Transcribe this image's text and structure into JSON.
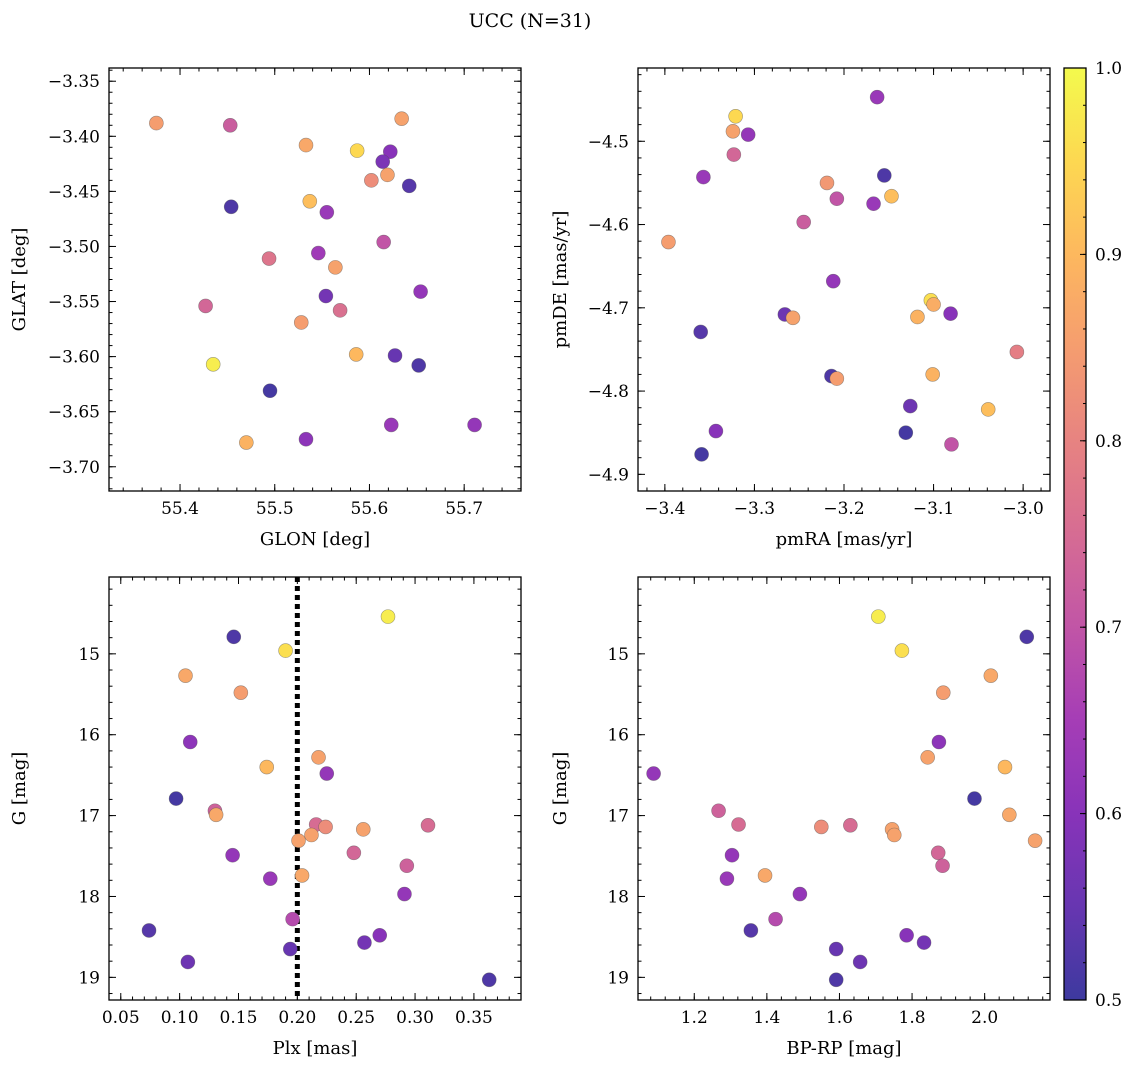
{
  "figure": {
    "title": "UCC (N=31)"
  },
  "colorbar": {
    "min": 0.5,
    "max": 1.0,
    "ticks": [
      0.5,
      0.6,
      0.7,
      0.8,
      0.9,
      1.0
    ],
    "tick_labels": [
      "0.5",
      "0.6",
      "0.7",
      "0.8",
      "0.9",
      "1.0"
    ],
    "colormap": "plasma"
  },
  "chart_data": [
    {
      "type": "scatter",
      "xlabel": "GLON [deg]",
      "ylabel": "GLAT [deg]",
      "xlim": [
        55.325,
        55.76
      ],
      "ylim": [
        -3.722,
        -3.338
      ],
      "xticks": [
        55.4,
        55.5,
        55.6,
        55.7
      ],
      "xtick_labels": [
        "55.4",
        "55.5",
        "55.6",
        "55.7"
      ],
      "yticks": [
        -3.35,
        -3.4,
        -3.45,
        -3.5,
        -3.55,
        -3.6,
        -3.65,
        -3.7
      ],
      "ytick_labels": [
        "−3.35",
        "−3.40",
        "−3.45",
        "−3.50",
        "−3.55",
        "−3.60",
        "−3.65",
        "−3.70"
      ],
      "points": [
        {
          "x": 55.375,
          "y": -3.388,
          "c": 0.85
        },
        {
          "x": 55.453,
          "y": -3.39,
          "c": 0.72
        },
        {
          "x": 55.533,
          "y": -3.408,
          "c": 0.87
        },
        {
          "x": 55.587,
          "y": -3.413,
          "c": 0.95
        },
        {
          "x": 55.622,
          "y": -3.414,
          "c": 0.6
        },
        {
          "x": 55.634,
          "y": -3.384,
          "c": 0.86
        },
        {
          "x": 55.614,
          "y": -3.423,
          "c": 0.58
        },
        {
          "x": 55.602,
          "y": -3.44,
          "c": 0.82
        },
        {
          "x": 55.619,
          "y": -3.435,
          "c": 0.86
        },
        {
          "x": 55.642,
          "y": -3.445,
          "c": 0.53
        },
        {
          "x": 55.454,
          "y": -3.464,
          "c": 0.52
        },
        {
          "x": 55.537,
          "y": -3.459,
          "c": 0.91
        },
        {
          "x": 55.555,
          "y": -3.469,
          "c": 0.63
        },
        {
          "x": 55.615,
          "y": -3.496,
          "c": 0.7
        },
        {
          "x": 55.546,
          "y": -3.506,
          "c": 0.64
        },
        {
          "x": 55.494,
          "y": -3.511,
          "c": 0.77
        },
        {
          "x": 55.564,
          "y": -3.519,
          "c": 0.86
        },
        {
          "x": 55.654,
          "y": -3.541,
          "c": 0.62
        },
        {
          "x": 55.554,
          "y": -3.545,
          "c": 0.57
        },
        {
          "x": 55.427,
          "y": -3.554,
          "c": 0.74
        },
        {
          "x": 55.569,
          "y": -3.558,
          "c": 0.76
        },
        {
          "x": 55.528,
          "y": -3.569,
          "c": 0.85
        },
        {
          "x": 55.586,
          "y": -3.598,
          "c": 0.9
        },
        {
          "x": 55.627,
          "y": -3.599,
          "c": 0.55
        },
        {
          "x": 55.435,
          "y": -3.607,
          "c": 0.98
        },
        {
          "x": 55.652,
          "y": -3.608,
          "c": 0.52
        },
        {
          "x": 55.495,
          "y": -3.631,
          "c": 0.51
        },
        {
          "x": 55.47,
          "y": -3.678,
          "c": 0.89
        },
        {
          "x": 55.533,
          "y": -3.675,
          "c": 0.61
        },
        {
          "x": 55.623,
          "y": -3.662,
          "c": 0.63
        },
        {
          "x": 55.711,
          "y": -3.662,
          "c": 0.62
        }
      ]
    },
    {
      "type": "scatter",
      "xlabel": "pmRA [mas/yr]",
      "ylabel": "pmDE [mas/yr]",
      "xlim": [
        -3.43,
        -2.97
      ],
      "ylim": [
        -4.92,
        -4.412
      ],
      "xticks": [
        -3.4,
        -3.3,
        -3.2,
        -3.1,
        -3.0
      ],
      "xtick_labels": [
        "−3.4",
        "−3.3",
        "−3.2",
        "−3.1",
        "−3.0"
      ],
      "yticks": [
        -4.5,
        -4.6,
        -4.7,
        -4.8,
        -4.9
      ],
      "ytick_labels": [
        "−4.5",
        "−4.6",
        "−4.7",
        "−4.8",
        "−4.9"
      ],
      "points": [
        {
          "x": -3.396,
          "y": -4.621,
          "c": 0.85
        },
        {
          "x": -3.321,
          "y": -4.47,
          "c": 0.95
        },
        {
          "x": -3.324,
          "y": -4.488,
          "c": 0.86
        },
        {
          "x": -3.307,
          "y": -4.492,
          "c": 0.62
        },
        {
          "x": -3.323,
          "y": -4.516,
          "c": 0.74
        },
        {
          "x": -3.357,
          "y": -4.543,
          "c": 0.63
        },
        {
          "x": -3.163,
          "y": -4.447,
          "c": 0.63
        },
        {
          "x": -3.155,
          "y": -4.541,
          "c": 0.52
        },
        {
          "x": -3.219,
          "y": -4.55,
          "c": 0.84
        },
        {
          "x": -3.147,
          "y": -4.566,
          "c": 0.91
        },
        {
          "x": -3.208,
          "y": -4.569,
          "c": 0.7
        },
        {
          "x": -3.167,
          "y": -4.575,
          "c": 0.63
        },
        {
          "x": -3.245,
          "y": -4.597,
          "c": 0.72
        },
        {
          "x": -3.212,
          "y": -4.668,
          "c": 0.62
        },
        {
          "x": -3.103,
          "y": -4.691,
          "c": 0.96
        },
        {
          "x": -3.1,
          "y": -4.696,
          "c": 0.88
        },
        {
          "x": -3.118,
          "y": -4.711,
          "c": 0.89
        },
        {
          "x": -3.081,
          "y": -4.707,
          "c": 0.6
        },
        {
          "x": -3.266,
          "y": -4.708,
          "c": 0.56
        },
        {
          "x": -3.257,
          "y": -4.712,
          "c": 0.86
        },
        {
          "x": -3.36,
          "y": -4.729,
          "c": 0.53
        },
        {
          "x": -3.007,
          "y": -4.753,
          "c": 0.79
        },
        {
          "x": -3.214,
          "y": -4.782,
          "c": 0.52
        },
        {
          "x": -3.208,
          "y": -4.785,
          "c": 0.85
        },
        {
          "x": -3.101,
          "y": -4.78,
          "c": 0.89
        },
        {
          "x": -3.039,
          "y": -4.822,
          "c": 0.91
        },
        {
          "x": -3.126,
          "y": -4.818,
          "c": 0.56
        },
        {
          "x": -3.131,
          "y": -4.85,
          "c": 0.51
        },
        {
          "x": -3.343,
          "y": -4.848,
          "c": 0.6
        },
        {
          "x": -3.08,
          "y": -4.864,
          "c": 0.7
        },
        {
          "x": -3.359,
          "y": -4.876,
          "c": 0.51
        }
      ]
    },
    {
      "type": "scatter",
      "xlabel": "Plx [mas]",
      "ylabel": "G [mag]",
      "xlim": [
        0.04,
        0.39
      ],
      "ylim": [
        19.28,
        14.05
      ],
      "y_inverted": true,
      "vline": 0.2,
      "xticks": [
        0.05,
        0.1,
        0.15,
        0.2,
        0.25,
        0.3,
        0.35
      ],
      "xtick_labels": [
        "0.05",
        "0.10",
        "0.15",
        "0.20",
        "0.25",
        "0.30",
        "0.35"
      ],
      "yticks": [
        15,
        16,
        17,
        18,
        19
      ],
      "ytick_labels": [
        "15",
        "16",
        "17",
        "18",
        "19"
      ],
      "points": [
        {
          "x": 0.277,
          "y": 14.54,
          "c": 0.98
        },
        {
          "x": 0.146,
          "y": 14.79,
          "c": 0.52
        },
        {
          "x": 0.19,
          "y": 14.96,
          "c": 0.96
        },
        {
          "x": 0.105,
          "y": 15.27,
          "c": 0.87
        },
        {
          "x": 0.152,
          "y": 15.48,
          "c": 0.85
        },
        {
          "x": 0.109,
          "y": 16.09,
          "c": 0.61
        },
        {
          "x": 0.218,
          "y": 16.28,
          "c": 0.86
        },
        {
          "x": 0.174,
          "y": 16.4,
          "c": 0.9
        },
        {
          "x": 0.225,
          "y": 16.48,
          "c": 0.62
        },
        {
          "x": 0.097,
          "y": 16.79,
          "c": 0.51
        },
        {
          "x": 0.13,
          "y": 16.94,
          "c": 0.73
        },
        {
          "x": 0.131,
          "y": 16.99,
          "c": 0.87
        },
        {
          "x": 0.216,
          "y": 17.11,
          "c": 0.75
        },
        {
          "x": 0.224,
          "y": 17.14,
          "c": 0.82
        },
        {
          "x": 0.311,
          "y": 17.12,
          "c": 0.75
        },
        {
          "x": 0.256,
          "y": 17.17,
          "c": 0.86
        },
        {
          "x": 0.212,
          "y": 17.24,
          "c": 0.86
        },
        {
          "x": 0.201,
          "y": 17.31,
          "c": 0.86
        },
        {
          "x": 0.248,
          "y": 17.46,
          "c": 0.74
        },
        {
          "x": 0.145,
          "y": 17.49,
          "c": 0.62
        },
        {
          "x": 0.293,
          "y": 17.62,
          "c": 0.73
        },
        {
          "x": 0.204,
          "y": 17.74,
          "c": 0.87
        },
        {
          "x": 0.177,
          "y": 17.78,
          "c": 0.63
        },
        {
          "x": 0.291,
          "y": 17.97,
          "c": 0.62
        },
        {
          "x": 0.196,
          "y": 18.28,
          "c": 0.68
        },
        {
          "x": 0.074,
          "y": 18.42,
          "c": 0.53
        },
        {
          "x": 0.27,
          "y": 18.48,
          "c": 0.6
        },
        {
          "x": 0.257,
          "y": 18.57,
          "c": 0.57
        },
        {
          "x": 0.194,
          "y": 18.65,
          "c": 0.55
        },
        {
          "x": 0.107,
          "y": 18.81,
          "c": 0.56
        },
        {
          "x": 0.363,
          "y": 19.03,
          "c": 0.52
        }
      ]
    },
    {
      "type": "scatter",
      "xlabel": "BP-RP [mag]",
      "ylabel": "G [mag]",
      "xlim": [
        1.045,
        2.18
      ],
      "ylim": [
        19.28,
        14.05
      ],
      "y_inverted": true,
      "xticks": [
        1.2,
        1.4,
        1.6,
        1.8,
        2.0
      ],
      "xtick_labels": [
        "1.2",
        "1.4",
        "1.6",
        "1.8",
        "2.0"
      ],
      "yticks": [
        15,
        16,
        17,
        18,
        19
      ],
      "ytick_labels": [
        "15",
        "16",
        "17",
        "18",
        "19"
      ],
      "points": [
        {
          "x": 1.707,
          "y": 14.54,
          "c": 0.98
        },
        {
          "x": 2.116,
          "y": 14.79,
          "c": 0.52
        },
        {
          "x": 1.772,
          "y": 14.96,
          "c": 0.96
        },
        {
          "x": 2.017,
          "y": 15.27,
          "c": 0.87
        },
        {
          "x": 1.886,
          "y": 15.48,
          "c": 0.85
        },
        {
          "x": 1.874,
          "y": 16.09,
          "c": 0.61
        },
        {
          "x": 1.843,
          "y": 16.28,
          "c": 0.86
        },
        {
          "x": 2.056,
          "y": 16.4,
          "c": 0.9
        },
        {
          "x": 1.088,
          "y": 16.48,
          "c": 0.62
        },
        {
          "x": 1.972,
          "y": 16.79,
          "c": 0.51
        },
        {
          "x": 1.267,
          "y": 16.94,
          "c": 0.73
        },
        {
          "x": 2.068,
          "y": 16.99,
          "c": 0.87
        },
        {
          "x": 1.322,
          "y": 17.11,
          "c": 0.75
        },
        {
          "x": 1.55,
          "y": 17.14,
          "c": 0.82
        },
        {
          "x": 1.63,
          "y": 17.12,
          "c": 0.75
        },
        {
          "x": 1.745,
          "y": 17.17,
          "c": 0.86
        },
        {
          "x": 1.751,
          "y": 17.24,
          "c": 0.86
        },
        {
          "x": 2.139,
          "y": 17.31,
          "c": 0.86
        },
        {
          "x": 1.872,
          "y": 17.46,
          "c": 0.74
        },
        {
          "x": 1.304,
          "y": 17.49,
          "c": 0.62
        },
        {
          "x": 1.884,
          "y": 17.62,
          "c": 0.73
        },
        {
          "x": 1.395,
          "y": 17.74,
          "c": 0.87
        },
        {
          "x": 1.29,
          "y": 17.78,
          "c": 0.63
        },
        {
          "x": 1.491,
          "y": 17.97,
          "c": 0.62
        },
        {
          "x": 1.424,
          "y": 18.28,
          "c": 0.68
        },
        {
          "x": 1.356,
          "y": 18.42,
          "c": 0.53
        },
        {
          "x": 1.785,
          "y": 18.48,
          "c": 0.6
        },
        {
          "x": 1.833,
          "y": 18.57,
          "c": 0.57
        },
        {
          "x": 1.591,
          "y": 18.65,
          "c": 0.55
        },
        {
          "x": 1.657,
          "y": 18.81,
          "c": 0.56
        },
        {
          "x": 1.591,
          "y": 19.03,
          "c": 0.52
        }
      ]
    }
  ]
}
